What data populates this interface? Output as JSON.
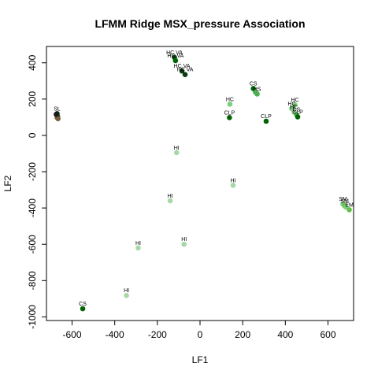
{
  "chart_data": {
    "type": "scatter",
    "title": "LFMM Ridge MSX_pressure Association",
    "xlabel": "LF1",
    "ylabel": "LF2",
    "xlim": [
      -720,
      720
    ],
    "ylim": [
      -1020,
      490
    ],
    "xticks": [
      -600,
      -400,
      -200,
      0,
      200,
      400,
      600
    ],
    "yticks": [
      -1000,
      -800,
      -600,
      -400,
      -200,
      0,
      200,
      400
    ],
    "grid": false,
    "colors": {
      "dark_green": "#006400",
      "black_green": "#0a3d12",
      "mid_green": "#4caf50",
      "light_green": "#7ccf7c",
      "pale_green": "#a8d8a8",
      "brown": "#7a5c3a",
      "lime": "#66c24a"
    },
    "points": [
      {
        "x": -670,
        "y": 120,
        "label": "SL",
        "color": "#0a3d12"
      },
      {
        "x": -672,
        "y": 112,
        "label": "",
        "color": "#1a1a1a"
      },
      {
        "x": -668,
        "y": 105,
        "label": "",
        "color": "#0a3d12"
      },
      {
        "x": -670,
        "y": 98,
        "label": "",
        "color": "#7a5c3a"
      },
      {
        "x": -666,
        "y": 92,
        "label": "",
        "color": "#7a5c3a"
      },
      {
        "x": -674,
        "y": 116,
        "label": "",
        "color": "#1a1a1a"
      },
      {
        "x": -120,
        "y": 430,
        "label": "HC VA",
        "color": "#0a3d12"
      },
      {
        "x": -115,
        "y": 412,
        "label": "HC VA",
        "color": "#006400"
      },
      {
        "x": -85,
        "y": 355,
        "label": "HC VA",
        "color": "#0a3d12"
      },
      {
        "x": -70,
        "y": 335,
        "label": "HC VA",
        "color": "#0a3d12"
      },
      {
        "x": 250,
        "y": 258,
        "label": "CS",
        "color": "#006400"
      },
      {
        "x": 260,
        "y": 238,
        "label": "",
        "color": "#4caf50"
      },
      {
        "x": 268,
        "y": 228,
        "label": "HS",
        "color": "#4caf50"
      },
      {
        "x": 140,
        "y": 172,
        "label": "HC",
        "color": "#7ccf7c"
      },
      {
        "x": 138,
        "y": 98,
        "label": "CLP",
        "color": "#006400"
      },
      {
        "x": 310,
        "y": 78,
        "label": "CLP",
        "color": "#006400"
      },
      {
        "x": 445,
        "y": 168,
        "label": "HC",
        "color": "#7ccf7c"
      },
      {
        "x": 430,
        "y": 148,
        "label": "HC",
        "color": "#7ccf7c"
      },
      {
        "x": 440,
        "y": 128,
        "label": "HC",
        "color": "#a8d8a8"
      },
      {
        "x": 452,
        "y": 115,
        "label": "CS",
        "color": "#4caf50"
      },
      {
        "x": 458,
        "y": 102,
        "label": "CLP",
        "color": "#006400"
      },
      {
        "x": -110,
        "y": -95,
        "label": "HI",
        "color": "#a8d8a8"
      },
      {
        "x": 155,
        "y": -275,
        "label": "HI",
        "color": "#a8d8a8"
      },
      {
        "x": -140,
        "y": -360,
        "label": "HI",
        "color": "#a8d8a8"
      },
      {
        "x": -290,
        "y": -620,
        "label": "HI",
        "color": "#a8d8a8"
      },
      {
        "x": -75,
        "y": -600,
        "label": "HI",
        "color": "#a8d8a8"
      },
      {
        "x": -345,
        "y": -882,
        "label": "HI",
        "color": "#a8d8a8"
      },
      {
        "x": -550,
        "y": -955,
        "label": "CS",
        "color": "#006400"
      },
      {
        "x": 670,
        "y": -378,
        "label": "SM",
        "color": "#7ccf7c"
      },
      {
        "x": 678,
        "y": -388,
        "label": "SM",
        "color": "#66c24a"
      },
      {
        "x": 684,
        "y": -395,
        "label": "",
        "color": "#7ccf7c"
      },
      {
        "x": 700,
        "y": -410,
        "label": "EM",
        "color": "#66c24a"
      }
    ]
  }
}
